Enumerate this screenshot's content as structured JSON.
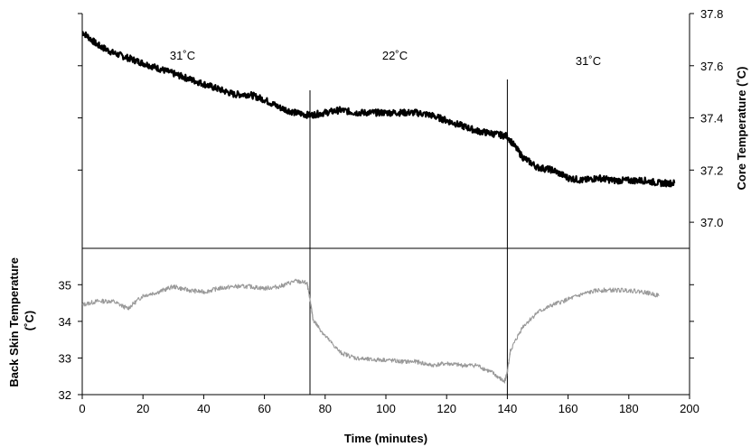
{
  "chart_data": [
    {
      "type": "line",
      "panel": "top",
      "ylabel": "Core Temperature (˚C)",
      "y_axis_side": "right",
      "ylim": [
        36.9,
        37.8
      ],
      "yticks": [
        "37.0",
        "37.2",
        "37.4",
        "37.6",
        "37.8"
      ],
      "left_minor_ticks": true,
      "xlim": [
        0,
        200
      ],
      "grid": false,
      "annotations": [
        "31˚C",
        "22˚C",
        "31˚C"
      ],
      "phase_boundaries_minutes": [
        75,
        140
      ],
      "series": [
        {
          "color": "#000000",
          "x": [
            0,
            5,
            10,
            15,
            20,
            25,
            30,
            35,
            40,
            45,
            50,
            55,
            60,
            65,
            70,
            75,
            80,
            85,
            90,
            95,
            100,
            105,
            110,
            115,
            120,
            125,
            130,
            135,
            140,
            145,
            150,
            155,
            160,
            165,
            170,
            175,
            180,
            185,
            190,
            195
          ],
          "values": [
            37.73,
            37.68,
            37.65,
            37.63,
            37.61,
            37.59,
            37.57,
            37.55,
            37.53,
            37.51,
            37.49,
            37.49,
            37.47,
            37.44,
            37.42,
            37.41,
            37.42,
            37.43,
            37.42,
            37.42,
            37.42,
            37.42,
            37.42,
            37.41,
            37.39,
            37.37,
            37.35,
            37.34,
            37.33,
            37.25,
            37.21,
            37.2,
            37.17,
            37.16,
            37.17,
            37.16,
            37.16,
            37.16,
            37.15,
            37.15
          ]
        }
      ]
    },
    {
      "type": "line",
      "panel": "bottom",
      "xlabel": "Time (minutes)",
      "ylabel": "Back Skin Temperature\n(˚C)",
      "y_axis_side": "left",
      "ylim": [
        32,
        35.5
      ],
      "yticks": [
        "32",
        "33",
        "34",
        "35"
      ],
      "xticks": [
        "0",
        "20",
        "40",
        "60",
        "80",
        "100",
        "120",
        "140",
        "160",
        "180",
        "200"
      ],
      "xlim": [
        0,
        200
      ],
      "grid": false,
      "series": [
        {
          "color": "#999999",
          "x": [
            0,
            5,
            10,
            15,
            20,
            25,
            30,
            35,
            40,
            45,
            50,
            55,
            60,
            65,
            70,
            74,
            75,
            76,
            80,
            85,
            90,
            95,
            100,
            105,
            110,
            115,
            120,
            125,
            130,
            135,
            139,
            140,
            141,
            145,
            150,
            155,
            160,
            165,
            170,
            175,
            180,
            185,
            190
          ],
          "values": [
            34.45,
            34.55,
            34.55,
            34.35,
            34.7,
            34.8,
            34.95,
            34.85,
            34.8,
            34.9,
            34.95,
            34.95,
            34.9,
            34.95,
            35.1,
            35.05,
            34.6,
            34.05,
            33.6,
            33.15,
            33.0,
            32.95,
            32.95,
            32.9,
            32.9,
            32.8,
            32.85,
            32.8,
            32.8,
            32.6,
            32.35,
            32.6,
            33.2,
            33.85,
            34.25,
            34.45,
            34.6,
            34.75,
            34.85,
            34.85,
            34.85,
            34.8,
            34.7
          ]
        }
      ]
    }
  ]
}
